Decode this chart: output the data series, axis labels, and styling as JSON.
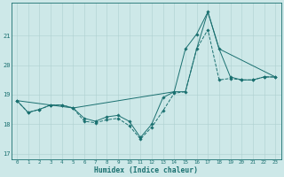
{
  "xlabel": "Humidex (Indice chaleur)",
  "xlim": [
    -0.5,
    23.5
  ],
  "ylim": [
    16.8,
    22.1
  ],
  "yticks": [
    17,
    18,
    19,
    20,
    21
  ],
  "xticks": [
    0,
    1,
    2,
    3,
    4,
    5,
    6,
    7,
    8,
    9,
    10,
    11,
    12,
    13,
    14,
    15,
    16,
    17,
    18,
    19,
    20,
    21,
    22,
    23
  ],
  "bg_color": "#cde8e8",
  "grid_color": "#aed0d0",
  "line_color": "#1a7070",
  "s1_x": [
    0,
    1,
    2,
    3,
    4,
    5,
    6,
    7,
    8,
    9,
    10,
    11,
    12,
    13,
    14,
    15,
    16,
    17,
    18,
    19,
    20,
    21,
    22,
    23
  ],
  "s1_y": [
    18.8,
    18.4,
    18.5,
    18.65,
    18.65,
    18.55,
    18.1,
    18.05,
    18.15,
    18.2,
    17.95,
    17.5,
    17.9,
    18.45,
    19.05,
    19.1,
    20.55,
    21.2,
    19.5,
    19.55,
    19.5,
    19.5,
    19.6,
    19.6
  ],
  "s2_x": [
    0,
    1,
    2,
    3,
    4,
    5,
    6,
    7,
    8,
    9,
    10,
    11,
    12,
    13,
    14,
    15,
    16,
    17,
    18,
    19,
    20,
    21,
    22,
    23
  ],
  "s2_y": [
    18.8,
    18.4,
    18.5,
    18.65,
    18.65,
    18.55,
    18.2,
    18.1,
    18.25,
    18.3,
    18.1,
    17.55,
    18.0,
    18.9,
    19.1,
    20.55,
    21.05,
    21.8,
    20.55,
    19.6,
    19.5,
    19.5,
    19.6,
    19.6
  ],
  "s3_x": [
    0,
    5,
    14,
    15,
    16,
    17,
    18,
    23
  ],
  "s3_y": [
    18.8,
    18.55,
    19.1,
    19.1,
    20.55,
    21.8,
    20.55,
    19.6
  ]
}
